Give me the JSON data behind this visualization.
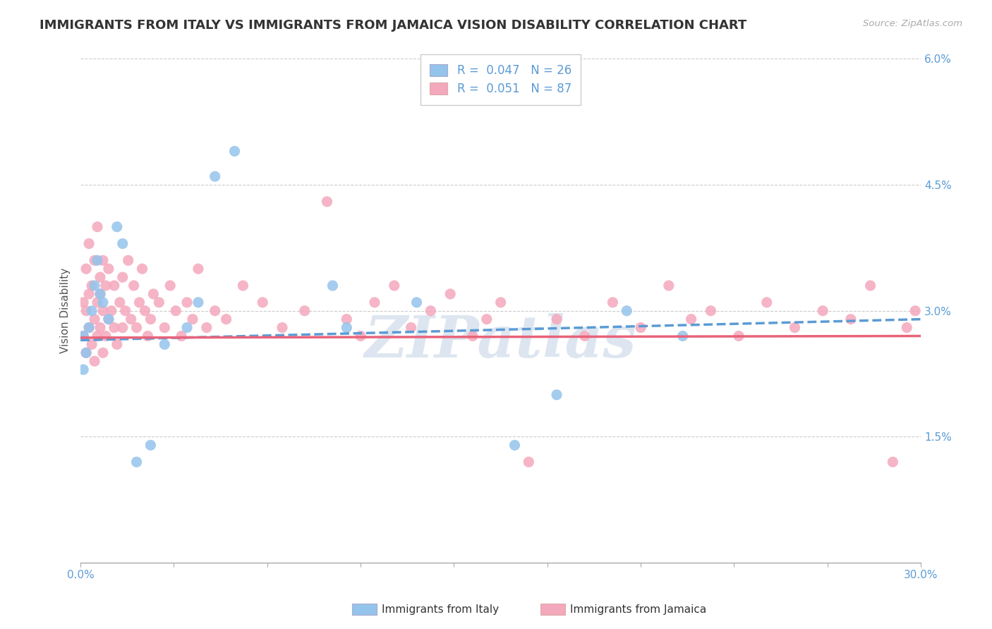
{
  "title": "IMMIGRANTS FROM ITALY VS IMMIGRANTS FROM JAMAICA VISION DISABILITY CORRELATION CHART",
  "source": "Source: ZipAtlas.com",
  "ylabel": "Vision Disability",
  "xlim": [
    0,
    0.3
  ],
  "ylim": [
    0,
    0.06
  ],
  "xticks": [
    0.0,
    0.03333,
    0.06667,
    0.1,
    0.13333,
    0.16667,
    0.2,
    0.23333,
    0.26667,
    0.3
  ],
  "yticks": [
    0.0,
    0.015,
    0.03,
    0.045,
    0.06
  ],
  "yticklabels": [
    "",
    "1.5%",
    "3.0%",
    "4.5%",
    "6.0%"
  ],
  "italy_color": "#94C4EC",
  "jamaica_color": "#F4A8BC",
  "italy_R": 0.047,
  "italy_N": 26,
  "jamaica_R": 0.051,
  "jamaica_N": 87,
  "italy_scatter_x": [
    0.001,
    0.001,
    0.002,
    0.003,
    0.004,
    0.005,
    0.006,
    0.007,
    0.008,
    0.01,
    0.013,
    0.015,
    0.02,
    0.025,
    0.03,
    0.038,
    0.042,
    0.048,
    0.055,
    0.09,
    0.095,
    0.12,
    0.155,
    0.17,
    0.195,
    0.215
  ],
  "italy_scatter_y": [
    0.027,
    0.023,
    0.025,
    0.028,
    0.03,
    0.033,
    0.036,
    0.032,
    0.031,
    0.029,
    0.04,
    0.038,
    0.012,
    0.014,
    0.026,
    0.028,
    0.031,
    0.046,
    0.049,
    0.033,
    0.028,
    0.031,
    0.014,
    0.02,
    0.03,
    0.027
  ],
  "jamaica_scatter_x": [
    0.001,
    0.001,
    0.002,
    0.002,
    0.002,
    0.003,
    0.003,
    0.003,
    0.004,
    0.004,
    0.005,
    0.005,
    0.005,
    0.006,
    0.006,
    0.006,
    0.007,
    0.007,
    0.007,
    0.008,
    0.008,
    0.008,
    0.009,
    0.009,
    0.01,
    0.01,
    0.011,
    0.012,
    0.012,
    0.013,
    0.014,
    0.015,
    0.015,
    0.016,
    0.017,
    0.018,
    0.019,
    0.02,
    0.021,
    0.022,
    0.023,
    0.024,
    0.025,
    0.026,
    0.028,
    0.03,
    0.032,
    0.034,
    0.036,
    0.038,
    0.04,
    0.042,
    0.045,
    0.048,
    0.052,
    0.058,
    0.065,
    0.072,
    0.08,
    0.088,
    0.095,
    0.1,
    0.105,
    0.112,
    0.118,
    0.125,
    0.132,
    0.14,
    0.145,
    0.15,
    0.16,
    0.17,
    0.18,
    0.19,
    0.2,
    0.21,
    0.218,
    0.225,
    0.235,
    0.245,
    0.255,
    0.265,
    0.275,
    0.282,
    0.29,
    0.295,
    0.298
  ],
  "jamaica_scatter_y": [
    0.027,
    0.031,
    0.025,
    0.03,
    0.035,
    0.032,
    0.028,
    0.038,
    0.033,
    0.026,
    0.036,
    0.029,
    0.024,
    0.031,
    0.027,
    0.04,
    0.034,
    0.028,
    0.032,
    0.03,
    0.025,
    0.036,
    0.027,
    0.033,
    0.029,
    0.035,
    0.03,
    0.028,
    0.033,
    0.026,
    0.031,
    0.034,
    0.028,
    0.03,
    0.036,
    0.029,
    0.033,
    0.028,
    0.031,
    0.035,
    0.03,
    0.027,
    0.029,
    0.032,
    0.031,
    0.028,
    0.033,
    0.03,
    0.027,
    0.031,
    0.029,
    0.035,
    0.028,
    0.03,
    0.029,
    0.033,
    0.031,
    0.028,
    0.03,
    0.043,
    0.029,
    0.027,
    0.031,
    0.033,
    0.028,
    0.03,
    0.032,
    0.027,
    0.029,
    0.031,
    0.012,
    0.029,
    0.027,
    0.031,
    0.028,
    0.033,
    0.029,
    0.03,
    0.027,
    0.031,
    0.028,
    0.03,
    0.029,
    0.033,
    0.012,
    0.028,
    0.03
  ],
  "background_color": "#ffffff",
  "grid_color": "#cccccc",
  "axis_color": "#5B9BD5",
  "title_fontsize": 13,
  "axis_label_fontsize": 11,
  "tick_fontsize": 11,
  "legend_fontsize": 12,
  "watermark_color": "#dde6f0",
  "watermark_fontsize": 60,
  "italy_trend_start": 0.0265,
  "italy_trend_end": 0.029,
  "jamaica_trend_start": 0.0268,
  "jamaica_trend_end": 0.027
}
